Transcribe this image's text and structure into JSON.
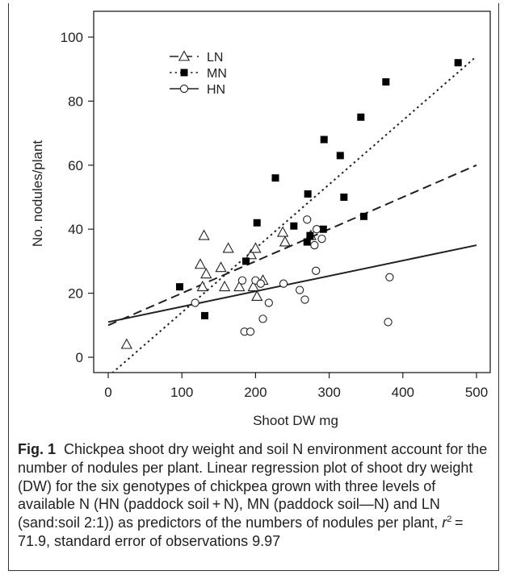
{
  "chart_data": {
    "type": "scatter",
    "xlabel": "Shoot DW mg",
    "ylabel": "No. nodules/plant",
    "xlim": [
      0,
      500
    ],
    "ylim": [
      0,
      100
    ],
    "xticks": [
      0,
      100,
      200,
      300,
      400,
      500
    ],
    "yticks": [
      0,
      20,
      40,
      60,
      80,
      100
    ],
    "legend_position": "top-left",
    "series": [
      {
        "name": "LN",
        "marker": "open-triangle",
        "line_style": "dashed",
        "fit": [
          10,
          0.1
        ],
        "points": [
          [
            25,
            4
          ],
          [
            125,
            29
          ],
          [
            128,
            22
          ],
          [
            130,
            38
          ],
          [
            133,
            26
          ],
          [
            153,
            28
          ],
          [
            158,
            22
          ],
          [
            163,
            34
          ],
          [
            178,
            22
          ],
          [
            194,
            32
          ],
          [
            197,
            22
          ],
          [
            200,
            34
          ],
          [
            202,
            19
          ],
          [
            210,
            24
          ],
          [
            237,
            39
          ],
          [
            240,
            36
          ],
          [
            275,
            38
          ]
        ]
      },
      {
        "name": "MN",
        "marker": "filled-square",
        "line_style": "dotted",
        "fit": [
          -6,
          0.2
        ],
        "points": [
          [
            97,
            22
          ],
          [
            131,
            13
          ],
          [
            187,
            30
          ],
          [
            202,
            42
          ],
          [
            227,
            56
          ],
          [
            252,
            41
          ],
          [
            270,
            36
          ],
          [
            271,
            51
          ],
          [
            274,
            38
          ],
          [
            292,
            40
          ],
          [
            293,
            68
          ],
          [
            315,
            63
          ],
          [
            320,
            50
          ],
          [
            343,
            75
          ],
          [
            347,
            44
          ],
          [
            377,
            86
          ],
          [
            475,
            92
          ]
        ]
      },
      {
        "name": "HN",
        "marker": "open-circle",
        "line_style": "solid",
        "fit": [
          11,
          0.048
        ],
        "points": [
          [
            118,
            17
          ],
          [
            182,
            24
          ],
          [
            185,
            8
          ],
          [
            193,
            8
          ],
          [
            200,
            24
          ],
          [
            207,
            23
          ],
          [
            210,
            12
          ],
          [
            218,
            17
          ],
          [
            238,
            23
          ],
          [
            260,
            21
          ],
          [
            267,
            18
          ],
          [
            270,
            43
          ],
          [
            280,
            35
          ],
          [
            282,
            27
          ],
          [
            283,
            40
          ],
          [
            290,
            37
          ],
          [
            380,
            11
          ],
          [
            382,
            25
          ]
        ]
      }
    ]
  },
  "caption": {
    "label": "Fig. 1",
    "text_main": "Chickpea shoot dry weight and soil N environment account for the number of nodules per plant. Linear regression plot of shoot dry weight (DW) for the six genotypes of chickpea grown with three levels of available N (HN (paddock soil + N), MN (paddock soil—N) and LN (sand:soil 2:1)) as predictors of the numbers of nodules per plant, ",
    "r_symbol": "r",
    "r_exponent": "2",
    "text_end": " = 71.9, standard error of observations 9.97"
  },
  "colors": {
    "ink": "#231f20",
    "marker_fill": "#000000",
    "background": "#ffffff"
  }
}
